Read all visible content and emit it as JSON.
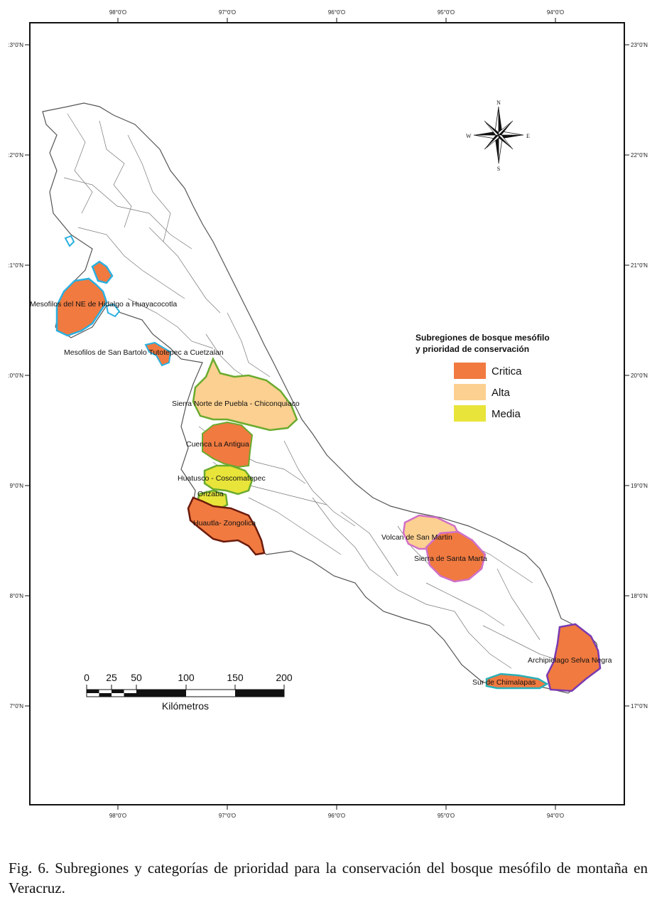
{
  "map": {
    "top_ticks": [
      "98°0'O",
      "97°0'O",
      "96°0'O",
      "95°0'O",
      "94°0'O"
    ],
    "bottom_ticks": [
      "98°0'O",
      "97°0'O",
      "96°0'O",
      "95°0'O",
      "94°0'O"
    ],
    "left_ticks": [
      ":3°0'N",
      ":2°0'N",
      ":1°0'N",
      ":0°0'N",
      "9°0'N",
      "8°0'N",
      "7°0'N"
    ],
    "right_ticks": [
      "23°0'N",
      "22°0'N",
      "21°0'N",
      "20°0'N",
      "19°0'N",
      "18°0'N",
      "17°0'N"
    ],
    "compass": {
      "n": "N",
      "s": "S",
      "e": "E",
      "w": "W"
    }
  },
  "regions": [
    {
      "name": "Mesofilos del NE de Hidalgo a Huayacocotla",
      "category": "Critica",
      "outline": "#2ab0e0"
    },
    {
      "name": "Mesofilos de San Bartolo Tutotepec a Cuetzalan",
      "category": "Critica",
      "outline": "#2ab0e0"
    },
    {
      "name": "Sierra Norte de Puebla - Chiconquiaco",
      "category": "Alta",
      "outline": "#6aab2e"
    },
    {
      "name": "Cuenca La Antigua",
      "category": "Critica",
      "outline": "#6aab2e"
    },
    {
      "name": "Huatusco - Coscomatepec",
      "category": "Media",
      "outline": "#6aab2e"
    },
    {
      "name": "Orizaba",
      "category": "Media",
      "outline": "#6aab2e"
    },
    {
      "name": "Huautla- Zongolica",
      "category": "Critica",
      "outline": "#6b1a0c"
    },
    {
      "name": "Volcan de San Martin",
      "category": "Alta",
      "outline": "#d070c8"
    },
    {
      "name": "Sierra de Santa Marta",
      "category": "Critica",
      "outline": "#d070c8"
    },
    {
      "name": "Archipielago Selva Negra",
      "category": "Critica",
      "outline": "#7a3ab0"
    },
    {
      "name": "Sur de Chimalapas",
      "category": "Critica",
      "outline": "#2ab0b8"
    }
  ],
  "legend": {
    "title_line1": "Subregiones de bosque mesófilo",
    "title_line2": "y prioridad de conservación",
    "items": [
      {
        "label": "Critica",
        "color": "#f07a40"
      },
      {
        "label": "Alta",
        "color": "#fbd090"
      },
      {
        "label": "Media",
        "color": "#e8e43a"
      }
    ]
  },
  "scale_bar": {
    "ticks": [
      "0",
      "25",
      "50",
      "100",
      "150",
      "200"
    ],
    "unit": "Kilómetros"
  },
  "caption": "Fig. 6. Subregiones y categorías de prioridad para la conservación del bosque mesófilo de montaña en Veracruz."
}
